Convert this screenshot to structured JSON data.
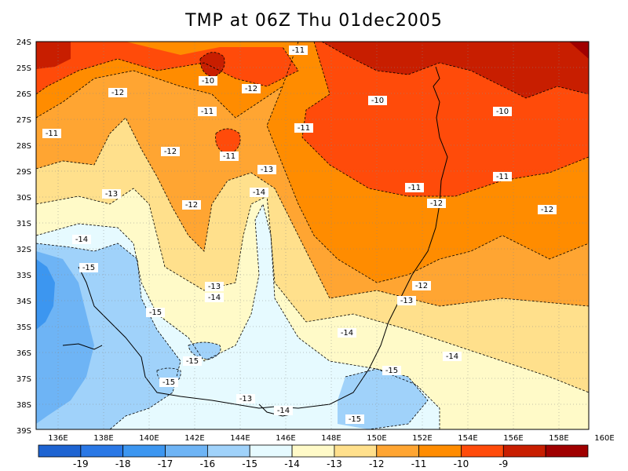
{
  "title": "TMP at 06Z Thu 01dec2005",
  "map": {
    "lat_labels": [
      "24S",
      "25S",
      "26S",
      "27S",
      "28S",
      "29S",
      "30S",
      "31S",
      "32S",
      "33S",
      "34S",
      "35S",
      "36S",
      "37S",
      "38S",
      "39S"
    ],
    "lon_labels": [
      "136E",
      "138E",
      "140E",
      "142E",
      "144E",
      "146E",
      "148E",
      "150E",
      "152E",
      "154E",
      "156E",
      "158E",
      "160E"
    ],
    "contour_labels": [
      {
        "text": "-11",
        "name": "contour-label-m11-a"
      },
      {
        "text": "-10",
        "name": "contour-label-m10-a"
      },
      {
        "text": "-12",
        "name": "contour-label-m12-a"
      },
      {
        "text": "-12",
        "name": "contour-label-m12-b"
      },
      {
        "text": "-11",
        "name": "contour-label-m11-b"
      },
      {
        "text": "-10",
        "name": "contour-label-m10-b"
      },
      {
        "text": "-10",
        "name": "contour-label-m10-c"
      },
      {
        "text": "-11",
        "name": "contour-label-m11-c"
      },
      {
        "text": "-11",
        "name": "contour-label-m11-d"
      },
      {
        "text": "-12",
        "name": "contour-label-m12-c"
      },
      {
        "text": "-11",
        "name": "contour-label-m11-e"
      },
      {
        "text": "-13",
        "name": "contour-label-m13-a"
      },
      {
        "text": "-13",
        "name": "contour-label-m13-b"
      },
      {
        "text": "-14",
        "name": "contour-label-m14-a"
      },
      {
        "text": "-12",
        "name": "contour-label-m12-d"
      },
      {
        "text": "-11",
        "name": "contour-label-m11-f"
      },
      {
        "text": "-11",
        "name": "contour-label-m11-g"
      },
      {
        "text": "-12",
        "name": "contour-label-m12-e"
      },
      {
        "text": "-12",
        "name": "contour-label-m12-f"
      },
      {
        "text": "-14",
        "name": "contour-label-m14-b"
      },
      {
        "text": "-15",
        "name": "contour-label-m15-a"
      },
      {
        "text": "-13",
        "name": "contour-label-m13-c"
      },
      {
        "text": "-14",
        "name": "contour-label-m14-c"
      },
      {
        "text": "-12",
        "name": "contour-label-m12-g"
      },
      {
        "text": "-13",
        "name": "contour-label-m13-d"
      },
      {
        "text": "-15",
        "name": "contour-label-m15-b"
      },
      {
        "text": "-14",
        "name": "contour-label-m14-d"
      },
      {
        "text": "-15",
        "name": "contour-label-m15-c"
      },
      {
        "text": "-15",
        "name": "contour-label-m15-d"
      },
      {
        "text": "-14",
        "name": "contour-label-m14-e"
      },
      {
        "text": "-15",
        "name": "contour-label-m15-e"
      },
      {
        "text": "-13",
        "name": "contour-label-m13-e"
      },
      {
        "text": "-14",
        "name": "contour-label-m14-f"
      },
      {
        "text": "-15",
        "name": "contour-label-m15-f"
      }
    ]
  },
  "colorbar": {
    "labels": [
      "-19",
      "-18",
      "-17",
      "-16",
      "-15",
      "-14",
      "-13",
      "-12",
      "-11",
      "-10",
      "-9"
    ],
    "colors": [
      "#1e64d2",
      "#2a78e6",
      "#3c96f0",
      "#6eb4f5",
      "#a0d2fa",
      "#e6faff",
      "#fffac8",
      "#ffe08c",
      "#ffa532",
      "#ff8c00",
      "#ff4b0a",
      "#c81e00",
      "#a00000"
    ]
  },
  "colors": {
    "c_m9": "#a00000",
    "c_m10": "#c81e00",
    "c_m11": "#ff4b0a",
    "c_m12": "#ff8c00",
    "c_m13": "#ffa532",
    "c_m14": "#ffe08c",
    "c_m15": "#fffac8",
    "c_m16": "#e6faff",
    "c_m17": "#a0d2fa",
    "c_m18": "#6eb4f5",
    "c_m19": "#3c96f0",
    "c_m20": "#2a78e6"
  }
}
